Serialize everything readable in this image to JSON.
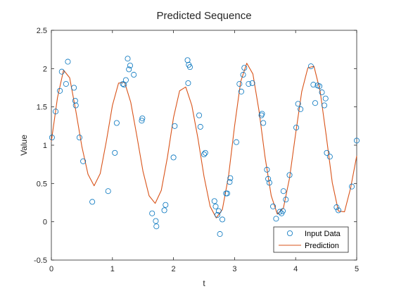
{
  "chart_data": {
    "type": "scatter",
    "title": "Predicted Sequence",
    "xlabel": "t",
    "ylabel": "Value",
    "xlim": [
      0,
      5
    ],
    "ylim": [
      -0.5,
      2.5
    ],
    "xticks": [
      "0",
      "1",
      "2",
      "3",
      "4",
      "5"
    ],
    "yticks": [
      "-0.5",
      "0",
      "0.5",
      "1",
      "1.5",
      "2",
      "2.5"
    ],
    "grid": false,
    "legend_position": "bottom-right",
    "colors": {
      "input": "#0072BD",
      "prediction": "#D95319",
      "axis": "#262626"
    },
    "series": [
      {
        "name": "Input Data",
        "kind": "scatter",
        "x": [
          0.01,
          0.07,
          0.14,
          0.17,
          0.24,
          0.27,
          0.37,
          0.39,
          0.4,
          0.46,
          0.52,
          0.67,
          0.93,
          1.04,
          1.07,
          1.17,
          1.19,
          1.22,
          1.25,
          1.27,
          1.29,
          1.35,
          1.48,
          1.49,
          1.65,
          1.71,
          1.72,
          1.85,
          1.87,
          2.0,
          2.02,
          2.23,
          2.24,
          2.25,
          2.27,
          2.42,
          2.44,
          2.5,
          2.52,
          2.67,
          2.69,
          2.72,
          2.74,
          2.76,
          2.8,
          2.86,
          2.88,
          2.92,
          2.93,
          3.03,
          3.08,
          3.11,
          3.14,
          3.16,
          3.23,
          3.29,
          3.44,
          3.45,
          3.47,
          3.53,
          3.55,
          3.57,
          3.63,
          3.68,
          3.74,
          3.77,
          3.79,
          3.8,
          3.84,
          3.9,
          4.01,
          4.04,
          4.08,
          4.25,
          4.29,
          4.32,
          4.36,
          4.39,
          4.43,
          4.47,
          4.49,
          4.51,
          4.56,
          4.67,
          4.7,
          4.92,
          5.0
        ],
        "y": [
          1.1,
          1.44,
          1.71,
          1.96,
          1.8,
          2.09,
          1.75,
          1.58,
          1.52,
          1.1,
          0.79,
          0.26,
          0.4,
          0.9,
          1.29,
          1.8,
          1.79,
          1.85,
          2.13,
          1.99,
          2.04,
          1.92,
          1.32,
          1.35,
          0.11,
          0.01,
          -0.06,
          0.15,
          0.22,
          0.84,
          1.25,
          2.11,
          1.81,
          2.05,
          2.02,
          1.39,
          1.24,
          0.88,
          0.9,
          0.27,
          0.2,
          0.09,
          0.14,
          -0.16,
          0.03,
          0.37,
          0.37,
          0.52,
          0.57,
          1.04,
          1.8,
          1.7,
          1.92,
          2.01,
          1.8,
          1.81,
          1.39,
          1.41,
          1.29,
          0.68,
          0.56,
          0.51,
          0.2,
          0.04,
          0.13,
          0.11,
          0.14,
          0.4,
          0.29,
          0.61,
          1.23,
          1.54,
          1.47,
          2.03,
          1.79,
          1.55,
          1.78,
          1.77,
          1.69,
          1.52,
          1.61,
          0.9,
          0.85,
          0.19,
          0.15,
          0.46,
          1.06
        ]
      },
      {
        "name": "Prediction",
        "kind": "line",
        "x": [
          0.0,
          0.1,
          0.2,
          0.3,
          0.4,
          0.5,
          0.6,
          0.7,
          0.8,
          0.9,
          1.0,
          1.1,
          1.2,
          1.3,
          1.4,
          1.5,
          1.6,
          1.7,
          1.8,
          1.9,
          2.0,
          2.1,
          2.2,
          2.3,
          2.4,
          2.5,
          2.6,
          2.7,
          2.8,
          2.9,
          3.0,
          3.1,
          3.2,
          3.3,
          3.4,
          3.5,
          3.6,
          3.7,
          3.8,
          3.9,
          4.0,
          4.1,
          4.2,
          4.3,
          4.4,
          4.5,
          4.6,
          4.7,
          4.8,
          4.9,
          5.0
        ],
        "y": [
          1.05,
          1.62,
          1.98,
          1.88,
          1.45,
          0.98,
          0.62,
          0.47,
          0.63,
          1.05,
          1.52,
          1.81,
          1.82,
          1.56,
          1.12,
          0.66,
          0.34,
          0.24,
          0.41,
          0.84,
          1.36,
          1.71,
          1.76,
          1.52,
          1.09,
          0.59,
          0.2,
          0.05,
          0.16,
          0.59,
          1.25,
          1.83,
          2.07,
          1.93,
          1.45,
          0.84,
          0.34,
          0.1,
          0.18,
          0.57,
          1.15,
          1.7,
          2.01,
          2.03,
          1.71,
          1.13,
          0.51,
          0.14,
          0.13,
          0.44,
          0.86
        ]
      }
    ]
  }
}
